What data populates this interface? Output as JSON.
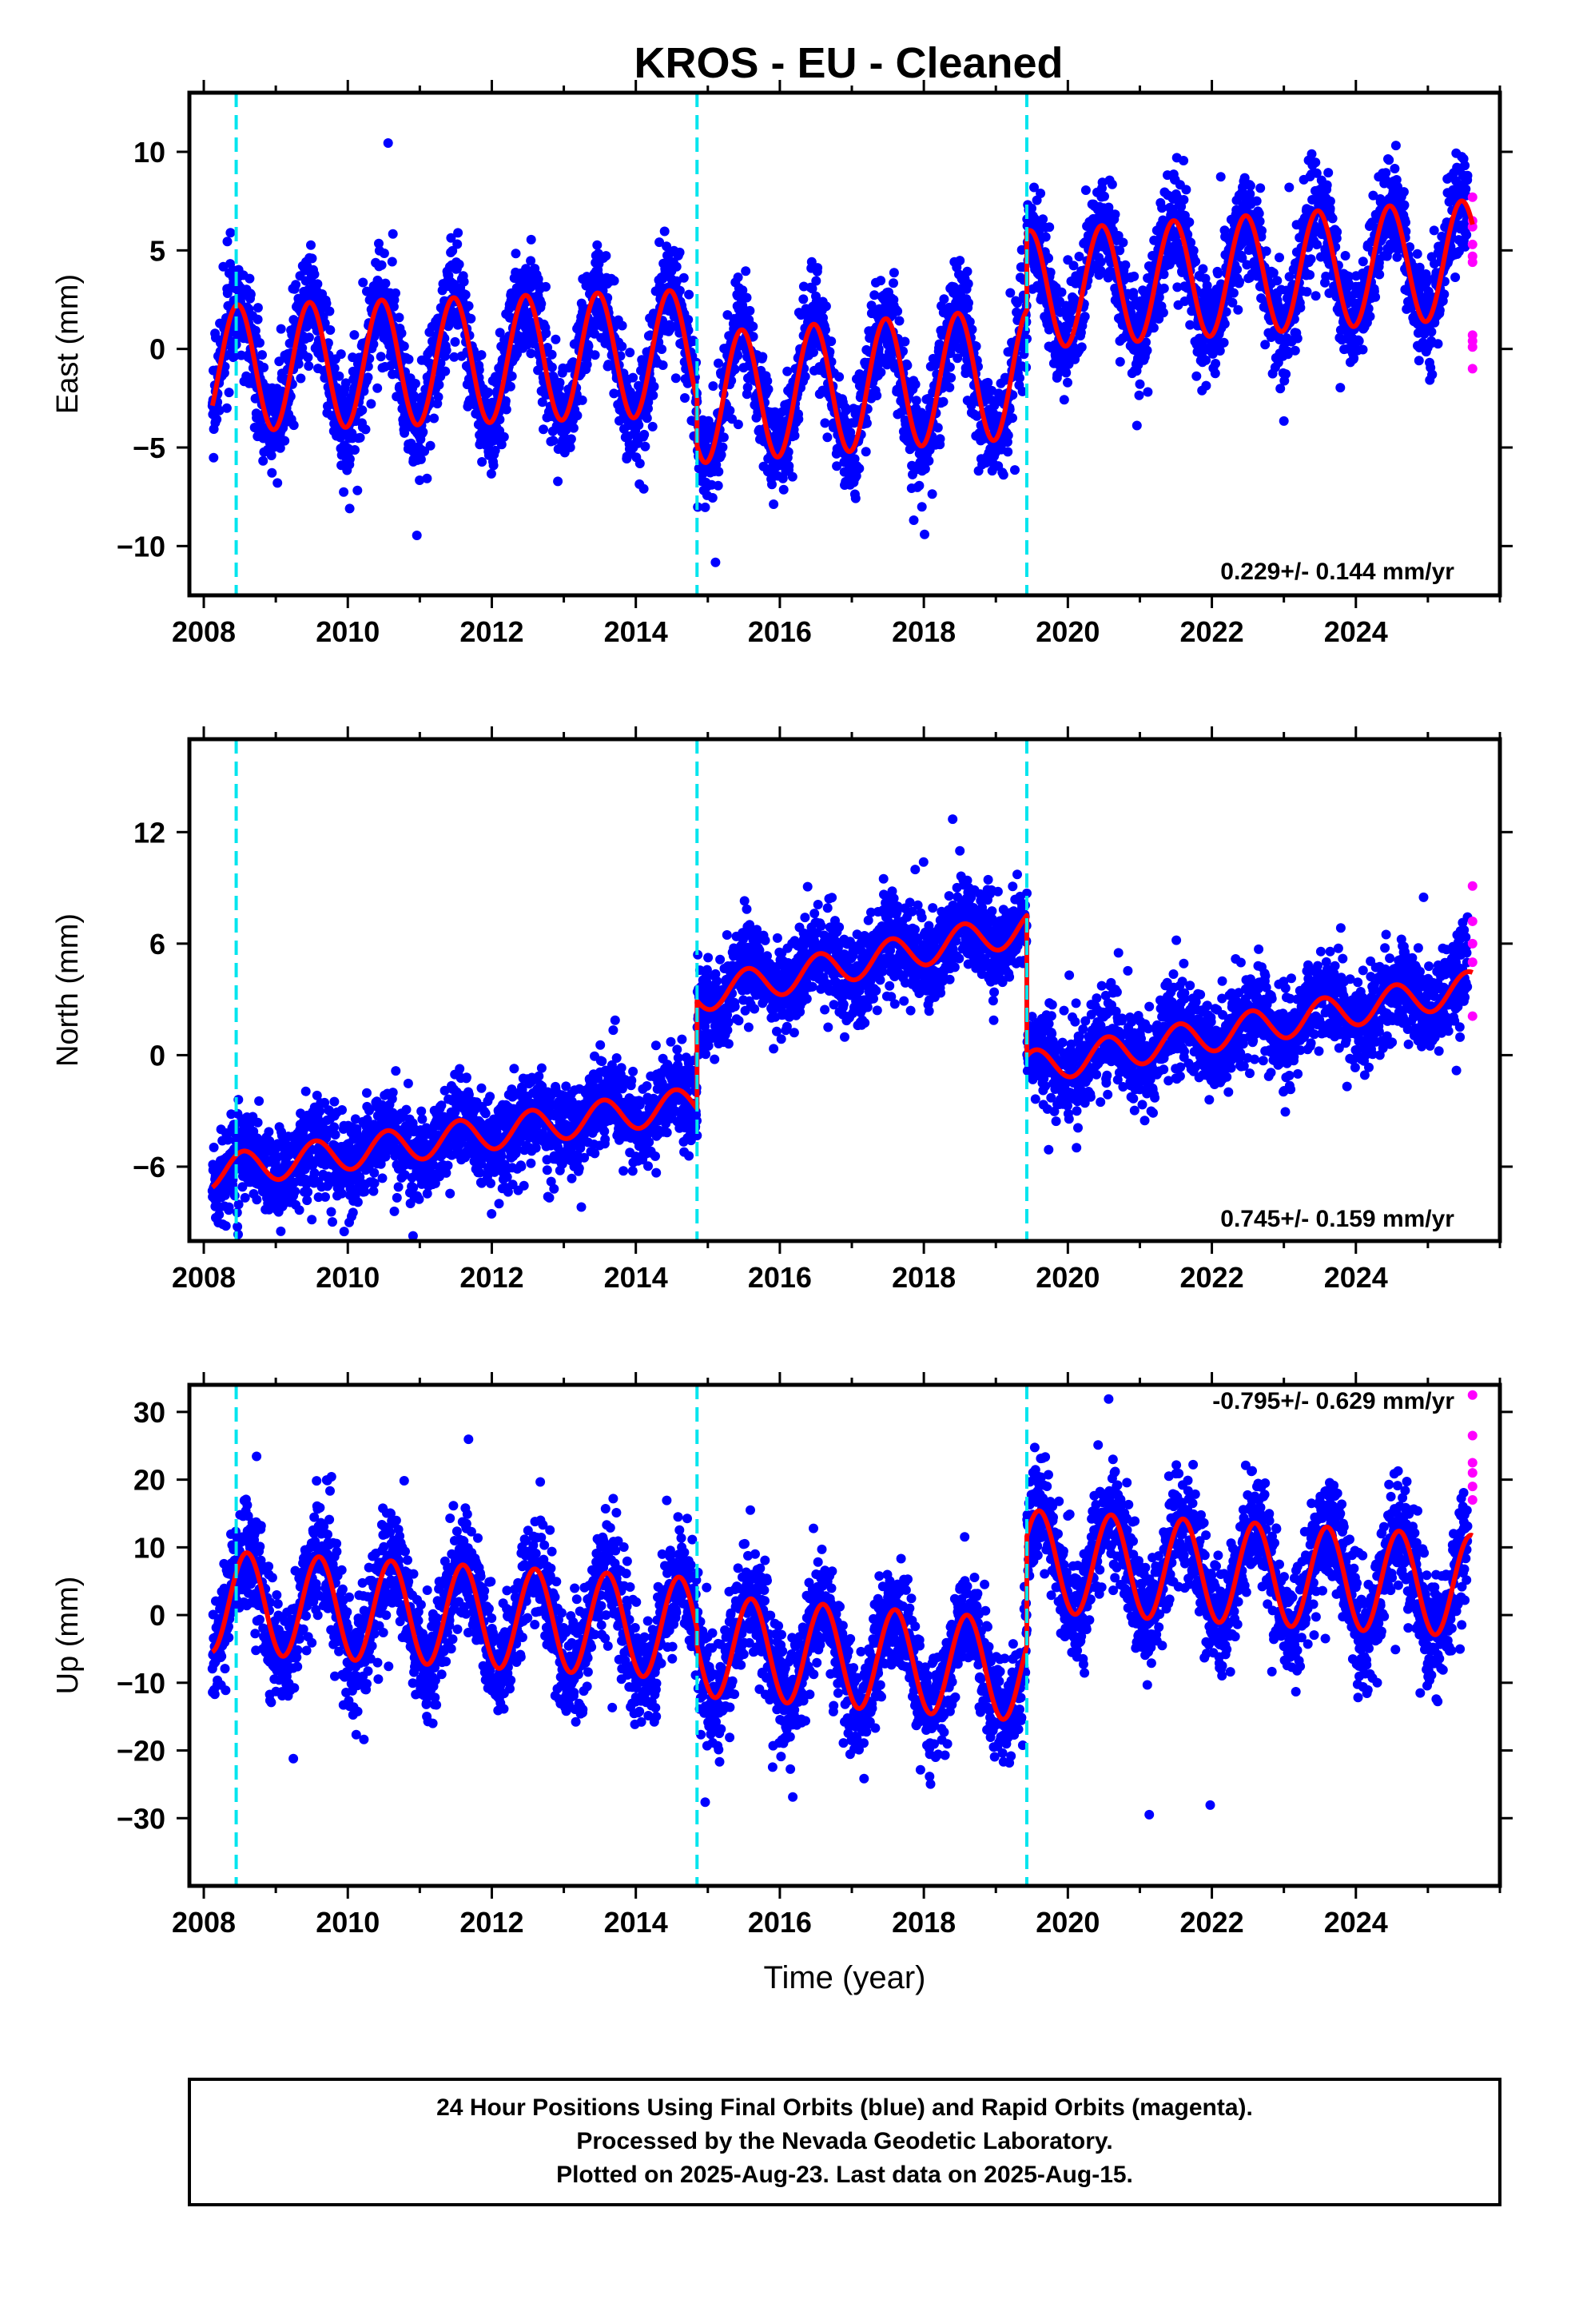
{
  "figure": {
    "title": "KROS  - EU - Cleaned",
    "footer": [
      "24 Hour Positions Using Final Orbits (blue) and Rapid Orbits (magenta).",
      "Processed by the Nevada Geodetic Laboratory.",
      "Plotted on 2025-Aug-23. Last data on 2025-Aug-15."
    ]
  },
  "colors": {
    "final_orbits": "#0000ff",
    "rapid_orbits": "#ff00ff",
    "model": "#ff0000",
    "steps": "#00e5ee",
    "frame": "#000000"
  },
  "chart_data": [
    {
      "type": "scatter",
      "component": "East",
      "ylabel": "East (mm)",
      "xlabel": "",
      "rate_label": "0.229+/- 0.144 mm/yr",
      "xlim": [
        2007.8,
        2026.0
      ],
      "ylim": [
        -12.5,
        13
      ],
      "xticks": [
        2008,
        2010,
        2012,
        2014,
        2016,
        2018,
        2020,
        2022,
        2024
      ],
      "yticks": [
        -10,
        -5,
        0,
        5,
        10
      ],
      "step_epochs": [
        2008.45,
        2014.85,
        2019.43
      ],
      "model": {
        "segments": [
          {
            "start": 2008.12,
            "end": 2014.85,
            "offset": -1.0,
            "trend": 0.12,
            "annual_amp": 3.2,
            "peak": 0.47
          },
          {
            "start": 2014.85,
            "end": 2019.43,
            "offset": -2.5,
            "trend": 0.28,
            "annual_amp": 3.3,
            "peak": 0.47
          },
          {
            "start": 2019.43,
            "end": 2025.62,
            "offset": 3.0,
            "trend": 0.25,
            "annual_amp": 3.0,
            "peak": 0.47
          }
        ]
      },
      "final_orbits_scatter_mm": 1.3,
      "final_orbits_end": 2025.55,
      "rapid_orbits": {
        "x": 2025.62,
        "y": [
          7.7,
          6.5,
          6.2,
          5.3,
          4.7,
          4.4,
          0.7,
          0.4,
          0.1,
          -1.0
        ]
      }
    },
    {
      "type": "scatter",
      "component": "North",
      "ylabel": "North (mm)",
      "xlabel": "",
      "rate_label": "0.745+/- 0.159 mm/yr",
      "xlim": [
        2007.8,
        2026.0
      ],
      "ylim": [
        -10,
        17
      ],
      "xticks": [
        2008,
        2010,
        2012,
        2014,
        2016,
        2018,
        2020,
        2022,
        2024
      ],
      "yticks": [
        -6,
        0,
        6,
        12
      ],
      "step_epochs": [
        2008.45,
        2014.85,
        2019.43
      ],
      "model": {
        "segments": [
          {
            "start": 2008.12,
            "end": 2014.85,
            "offset": -6.3,
            "trend": 0.55,
            "annual_amp": 0.9,
            "peak": 0.55
          },
          {
            "start": 2014.85,
            "end": 2019.43,
            "offset": 3.2,
            "trend": 0.8,
            "annual_amp": 0.9,
            "peak": 0.55
          },
          {
            "start": 2019.43,
            "end": 2025.62,
            "offset": -0.7,
            "trend": 0.7,
            "annual_amp": 0.9,
            "peak": 0.55
          }
        ]
      },
      "final_orbits_scatter_mm": 1.2,
      "final_orbits_end": 2025.55,
      "rapid_orbits": {
        "x": 2025.62,
        "y": [
          9.1,
          7.2,
          6.0,
          5.0,
          2.1
        ]
      }
    },
    {
      "type": "scatter",
      "component": "Up",
      "ylabel": "Up (mm)",
      "xlabel": "Time (year)",
      "rate_label": "-0.795+/- 0.629 mm/yr",
      "xlim": [
        2007.8,
        2026.0
      ],
      "ylim": [
        -40,
        34
      ],
      "xticks": [
        2008,
        2010,
        2012,
        2014,
        2016,
        2018,
        2020,
        2022,
        2024
      ],
      "yticks": [
        -30,
        -20,
        -10,
        0,
        10,
        20,
        30
      ],
      "step_epochs": [
        2008.45,
        2014.85,
        2019.43
      ],
      "model": {
        "segments": [
          {
            "start": 2008.12,
            "end": 2014.85,
            "offset": 2.0,
            "trend": -0.6,
            "annual_amp": 7.5,
            "peak": 0.6
          },
          {
            "start": 2014.85,
            "end": 2019.43,
            "offset": -4.5,
            "trend": -0.8,
            "annual_amp": 7.5,
            "peak": 0.6
          },
          {
            "start": 2019.43,
            "end": 2025.62,
            "offset": 8.0,
            "trend": -0.6,
            "annual_amp": 7.5,
            "peak": 0.6
          }
        ]
      },
      "final_orbits_scatter_mm": 4.0,
      "final_orbits_end": 2025.55,
      "rapid_orbits": {
        "x": 2025.62,
        "y": [
          32.5,
          26.5,
          22.5,
          21.0,
          19.0,
          17.0
        ]
      }
    }
  ]
}
